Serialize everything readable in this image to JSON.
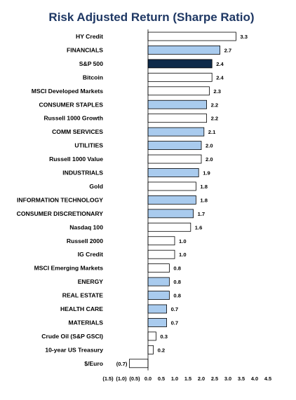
{
  "chart_data": {
    "type": "bar",
    "orientation": "horizontal",
    "title": "Risk Adjusted Return (Sharpe Ratio)",
    "xlim": [
      -1.5,
      4.5
    ],
    "x_ticks": [
      "(1.5)",
      "(1.0)",
      "(0.5)",
      "0.0",
      "0.5",
      "1.0",
      "1.5",
      "2.0",
      "2.5",
      "3.0",
      "3.5",
      "4.0",
      "4.5"
    ],
    "grid": false,
    "legend": "none",
    "categories": [
      "HY Credit",
      "FINANCIALS",
      "S&P 500",
      "Bitcoin",
      "MSCI Developed Markets",
      "CONSUMER STAPLES",
      "Russell 1000 Growth",
      "COMM SERVICES",
      "UTILITIES",
      "Russell 1000 Value",
      "INDUSTRIALS",
      "Gold",
      "INFORMATION TECHNOLOGY",
      "CONSUMER DISCRETIONARY",
      "Nasdaq 100",
      "Russell 2000",
      "IG Credit",
      "MSCI Emerging Markets",
      "ENERGY",
      "REAL ESTATE",
      "HEALTH CARE",
      "MATERIALS",
      "Crude Oil (S&P GSCI)",
      "10-year US Treasury",
      "$/Euro"
    ],
    "values": [
      3.3,
      2.7,
      2.4,
      2.4,
      2.3,
      2.2,
      2.2,
      2.1,
      2.0,
      2.0,
      1.9,
      1.8,
      1.8,
      1.7,
      1.6,
      1.0,
      1.0,
      0.8,
      0.8,
      0.8,
      0.7,
      0.7,
      0.3,
      0.2,
      -0.7
    ],
    "value_labels": [
      "3.3",
      "2.7",
      "2.4",
      "2.4",
      "2.3",
      "2.2",
      "2.2",
      "2.1",
      "2.0",
      "2.0",
      "1.9",
      "1.8",
      "1.8",
      "1.7",
      "1.6",
      "1.0",
      "1.0",
      "0.8",
      "0.8",
      "0.8",
      "0.7",
      "0.7",
      "0.3",
      "0.2",
      "(0.7)"
    ],
    "bar_kind": [
      "other",
      "sector",
      "index",
      "other",
      "other",
      "sector",
      "other",
      "sector",
      "sector",
      "other",
      "sector",
      "other",
      "sector",
      "sector",
      "other",
      "other",
      "other",
      "other",
      "sector",
      "sector",
      "sector",
      "sector",
      "other",
      "other",
      "other"
    ],
    "colors": {
      "sector": "#a9cbee",
      "index": "#0e2a4a",
      "other": "#ffffff",
      "border": "#000000",
      "axis": "#000000",
      "title": "#1f3864"
    }
  }
}
